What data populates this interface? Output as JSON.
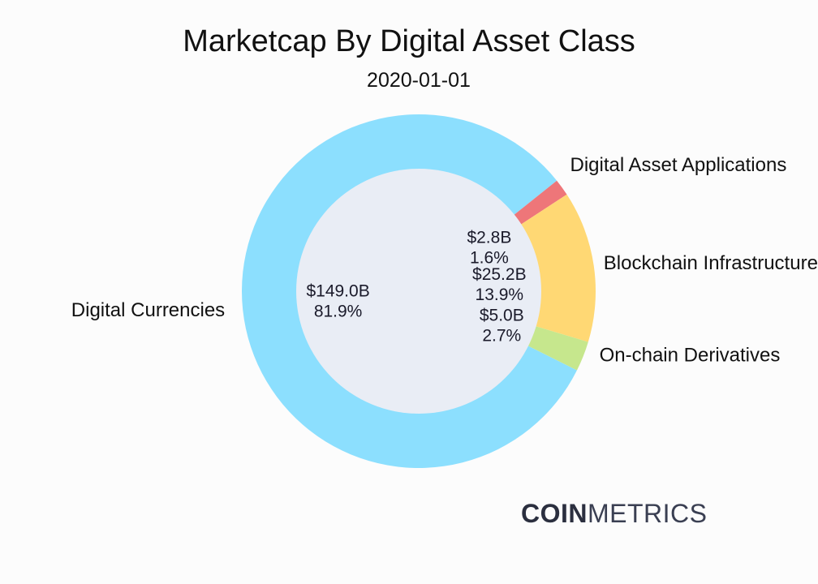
{
  "header": {
    "title": "Marketcap By Digital Asset Class",
    "subtitle": "2020-01-01"
  },
  "brand": {
    "part1": "COIN",
    "part2": "METRICS",
    "color1": "#2b2f3f",
    "color2": "#3a3f52"
  },
  "chart_data": {
    "type": "pie",
    "title": "Marketcap By Digital Asset Class",
    "subtitle": "2020-01-01",
    "hole": true,
    "hole_color": "#e9edf5",
    "categories": [
      "Digital Currencies",
      "Digital Asset Applications",
      "Blockchain Infrastructure",
      "On-chain Derivatives"
    ],
    "values": [
      149.0,
      2.8,
      25.2,
      5.0
    ],
    "value_labels": [
      "$149.0B",
      "$2.8B",
      "$25.2B",
      "$5.0B"
    ],
    "percent_labels": [
      "81.9%",
      "1.6%",
      "13.9%",
      "2.7%"
    ],
    "colors": [
      "#8cdffe",
      "#ee7679",
      "#ffd874",
      "#c6e78d"
    ],
    "unit": "$B"
  }
}
